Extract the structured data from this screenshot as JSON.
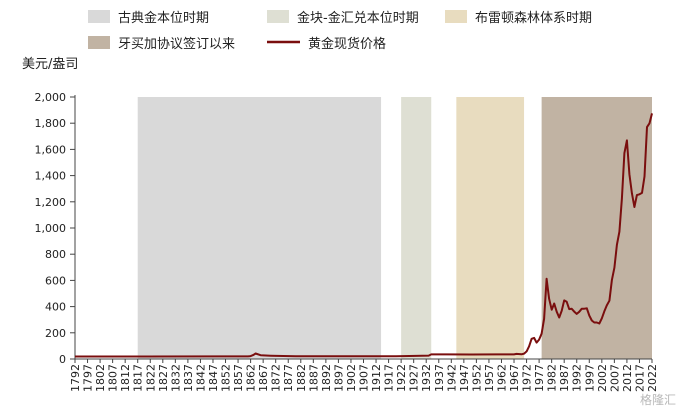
{
  "chart_data": {
    "type": "line",
    "ylabel": "美元/盎司",
    "ylim": [
      0,
      2000
    ],
    "yticks": [
      0,
      200,
      400,
      600,
      800,
      1000,
      1200,
      1400,
      1600,
      1800,
      2000
    ],
    "ytick_labels": [
      "0",
      "200",
      "400",
      "600",
      "800",
      "1,000",
      "1,200",
      "1,400",
      "1,600",
      "1,800",
      "2,000"
    ],
    "xlim": [
      1792,
      2022
    ],
    "xticks": [
      1792,
      1797,
      1802,
      1807,
      1812,
      1817,
      1822,
      1827,
      1832,
      1837,
      1842,
      1847,
      1852,
      1857,
      1862,
      1867,
      1872,
      1877,
      1882,
      1887,
      1892,
      1897,
      1902,
      1907,
      1912,
      1917,
      1922,
      1927,
      1932,
      1937,
      1942,
      1947,
      1952,
      1957,
      1962,
      1967,
      1972,
      1977,
      1982,
      1987,
      1992,
      1997,
      2002,
      2007,
      2012,
      2017,
      2022
    ],
    "grid": false,
    "legend_position": "top",
    "regimes": [
      {
        "name": "古典金本位时期",
        "start": 1817,
        "end": 1914,
        "color": "#d9d9d9"
      },
      {
        "name": "金块-金汇兑本位时期",
        "start": 1922,
        "end": 1934,
        "color": "#dedfd3"
      },
      {
        "name": "布雷顿森林体系时期",
        "start": 1944,
        "end": 1971,
        "color": "#e8dcbf"
      },
      {
        "name": "牙买加协议签订以来",
        "start": 1978,
        "end": 2022,
        "color": "#c1b3a3"
      }
    ],
    "series": [
      {
        "name": "黄金现货价格",
        "color": "#7a0e0e",
        "x": [
          1792,
          1800,
          1820,
          1850,
          1861,
          1862,
          1863,
          1864,
          1866,
          1868,
          1870,
          1880,
          1900,
          1920,
          1933,
          1934,
          1940,
          1950,
          1960,
          1967,
          1968,
          1970,
          1971,
          1972,
          1973,
          1974,
          1975,
          1976,
          1977,
          1978,
          1979,
          1980,
          1981,
          1982,
          1983,
          1984,
          1985,
          1986,
          1987,
          1988,
          1989,
          1990,
          1991,
          1992,
          1993,
          1994,
          1995,
          1996,
          1997,
          1998,
          1999,
          2000,
          2001,
          2002,
          2003,
          2004,
          2005,
          2006,
          2007,
          2008,
          2009,
          2010,
          2011,
          2012,
          2013,
          2014,
          2015,
          2016,
          2017,
          2018,
          2019,
          2020,
          2021,
          2022
        ],
        "y": [
          19.4,
          19.4,
          19.4,
          20.0,
          20.0,
          22.0,
          30.0,
          42.0,
          29.0,
          27.0,
          25.0,
          20.7,
          20.7,
          20.7,
          26.0,
          35.0,
          35.0,
          34.7,
          35.3,
          35.0,
          39.3,
          36.0,
          41.0,
          58.0,
          97.0,
          154.0,
          161.0,
          125.0,
          148.0,
          193.0,
          307.0,
          612.0,
          460.0,
          376.0,
          424.0,
          361.0,
          317.0,
          368.0,
          447.0,
          437.0,
          381.0,
          383.0,
          362.0,
          344.0,
          360.0,
          384.0,
          384.0,
          387.0,
          331.0,
          294.0,
          279.0,
          279.0,
          271.0,
          310.0,
          363.0,
          409.0,
          445.0,
          604.0,
          697.0,
          872.0,
          972.0,
          1225.0,
          1572.0,
          1669.0,
          1411.0,
          1266.0,
          1160.0,
          1251.0,
          1257.0,
          1268.0,
          1393.0,
          1770.0,
          1799.0,
          1875.0
        ]
      }
    ]
  },
  "watermark": "格隆汇"
}
